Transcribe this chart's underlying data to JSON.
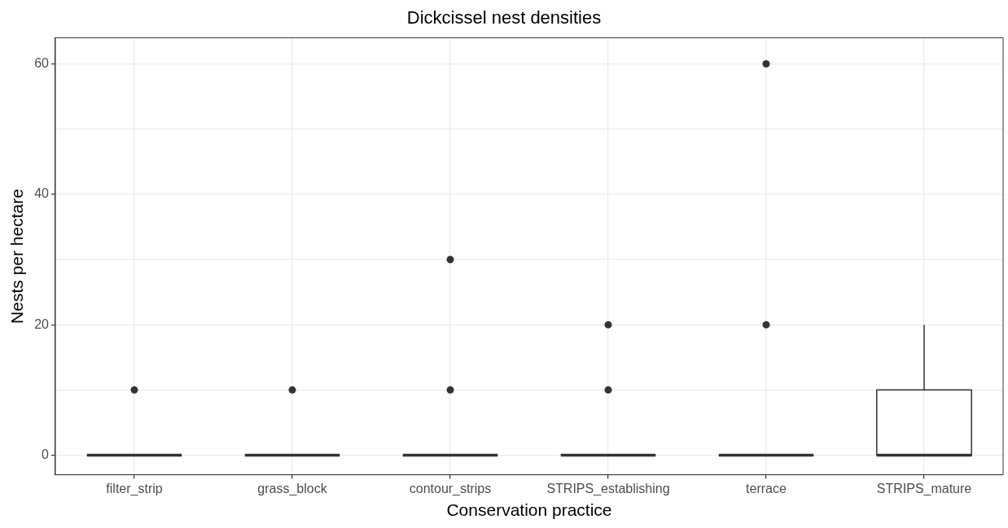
{
  "chart_data": {
    "type": "box",
    "title": "Dickcissel nest densities",
    "xlabel": "Conservation practice",
    "ylabel": "Nests per hectare",
    "categories": [
      "filter_strip",
      "grass_block",
      "contour_strips",
      "STRIPS_establishing",
      "terrace",
      "STRIPS_mature"
    ],
    "boxes": [
      {
        "low": 0,
        "q1": 0,
        "median": 0,
        "q3": 0,
        "high": 0,
        "outliers": [
          10
        ]
      },
      {
        "low": 0,
        "q1": 0,
        "median": 0,
        "q3": 0,
        "high": 0,
        "outliers": [
          10
        ]
      },
      {
        "low": 0,
        "q1": 0,
        "median": 0,
        "q3": 0,
        "high": 0,
        "outliers": [
          10,
          30
        ]
      },
      {
        "low": 0,
        "q1": 0,
        "median": 0,
        "q3": 0,
        "high": 0,
        "outliers": [
          10,
          20
        ]
      },
      {
        "low": 0,
        "q1": 0,
        "median": 0,
        "q3": 0,
        "high": 0,
        "outliers": [
          20,
          60
        ]
      },
      {
        "low": 0,
        "q1": 0,
        "median": 0,
        "q3": 10,
        "high": 20
      }
    ],
    "color": "#333333",
    "ylim": [
      -3,
      64
    ],
    "yticks": [
      0,
      {
        "value": 10,
        "label": null
      },
      20,
      {
        "value": 30,
        "label": null
      },
      40,
      {
        "value": 50,
        "label": null
      },
      60
    ],
    "grid": true,
    "legend": false
  }
}
